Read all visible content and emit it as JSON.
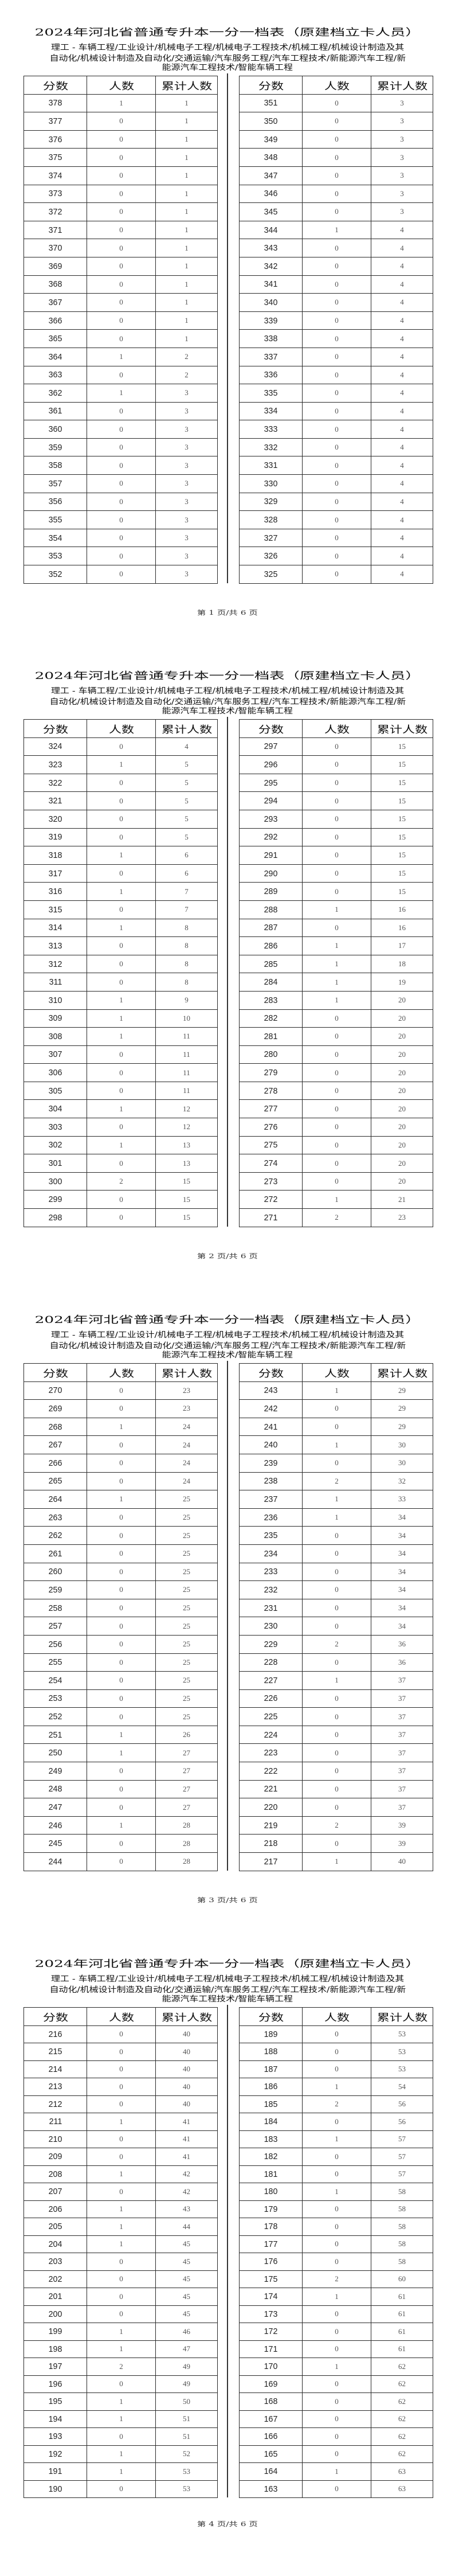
{
  "document": {
    "title": "2024年河北省普通专升本一分一档表（原建档立卡人员）",
    "subtitle_lines": [
      "理工 - 车辆工程/工业设计/机械电子工程/机械电子工程技术/机械工程/机械设计制造及其",
      "自动化/机械设计制造及自动化/交通运输/汽车服务工程/汽车工程技术/新能源汽车工程/新",
      "能源汽车工程技术/智能车辆工程"
    ],
    "columns": [
      "分数",
      "人数",
      "累计人数"
    ]
  },
  "pages": [
    {
      "footer": "第 1 页/共 6 页",
      "left": [
        [
          378,
          1,
          1
        ],
        [
          377,
          0,
          1
        ],
        [
          376,
          0,
          1
        ],
        [
          375,
          0,
          1
        ],
        [
          374,
          0,
          1
        ],
        [
          373,
          0,
          1
        ],
        [
          372,
          0,
          1
        ],
        [
          371,
          0,
          1
        ],
        [
          370,
          0,
          1
        ],
        [
          369,
          0,
          1
        ],
        [
          368,
          0,
          1
        ],
        [
          367,
          0,
          1
        ],
        [
          366,
          0,
          1
        ],
        [
          365,
          0,
          1
        ],
        [
          364,
          1,
          2
        ],
        [
          363,
          0,
          2
        ],
        [
          362,
          1,
          3
        ],
        [
          361,
          0,
          3
        ],
        [
          360,
          0,
          3
        ],
        [
          359,
          0,
          3
        ],
        [
          358,
          0,
          3
        ],
        [
          357,
          0,
          3
        ],
        [
          356,
          0,
          3
        ],
        [
          355,
          0,
          3
        ],
        [
          354,
          0,
          3
        ],
        [
          353,
          0,
          3
        ],
        [
          352,
          0,
          3
        ]
      ],
      "right": [
        [
          351,
          0,
          3
        ],
        [
          350,
          0,
          3
        ],
        [
          349,
          0,
          3
        ],
        [
          348,
          0,
          3
        ],
        [
          347,
          0,
          3
        ],
        [
          346,
          0,
          3
        ],
        [
          345,
          0,
          3
        ],
        [
          344,
          1,
          4
        ],
        [
          343,
          0,
          4
        ],
        [
          342,
          0,
          4
        ],
        [
          341,
          0,
          4
        ],
        [
          340,
          0,
          4
        ],
        [
          339,
          0,
          4
        ],
        [
          338,
          0,
          4
        ],
        [
          337,
          0,
          4
        ],
        [
          336,
          0,
          4
        ],
        [
          335,
          0,
          4
        ],
        [
          334,
          0,
          4
        ],
        [
          333,
          0,
          4
        ],
        [
          332,
          0,
          4
        ],
        [
          331,
          0,
          4
        ],
        [
          330,
          0,
          4
        ],
        [
          329,
          0,
          4
        ],
        [
          328,
          0,
          4
        ],
        [
          327,
          0,
          4
        ],
        [
          326,
          0,
          4
        ],
        [
          325,
          0,
          4
        ]
      ]
    },
    {
      "footer": "第 2 页/共 6 页",
      "left": [
        [
          324,
          0,
          4
        ],
        [
          323,
          1,
          5
        ],
        [
          322,
          0,
          5
        ],
        [
          321,
          0,
          5
        ],
        [
          320,
          0,
          5
        ],
        [
          319,
          0,
          5
        ],
        [
          318,
          1,
          6
        ],
        [
          317,
          0,
          6
        ],
        [
          316,
          1,
          7
        ],
        [
          315,
          0,
          7
        ],
        [
          314,
          1,
          8
        ],
        [
          313,
          0,
          8
        ],
        [
          312,
          0,
          8
        ],
        [
          311,
          0,
          8
        ],
        [
          310,
          1,
          9
        ],
        [
          309,
          1,
          10
        ],
        [
          308,
          1,
          11
        ],
        [
          307,
          0,
          11
        ],
        [
          306,
          0,
          11
        ],
        [
          305,
          0,
          11
        ],
        [
          304,
          1,
          12
        ],
        [
          303,
          0,
          12
        ],
        [
          302,
          1,
          13
        ],
        [
          301,
          0,
          13
        ],
        [
          300,
          2,
          15
        ],
        [
          299,
          0,
          15
        ],
        [
          298,
          0,
          15
        ]
      ],
      "right": [
        [
          297,
          0,
          15
        ],
        [
          296,
          0,
          15
        ],
        [
          295,
          0,
          15
        ],
        [
          294,
          0,
          15
        ],
        [
          293,
          0,
          15
        ],
        [
          292,
          0,
          15
        ],
        [
          291,
          0,
          15
        ],
        [
          290,
          0,
          15
        ],
        [
          289,
          0,
          15
        ],
        [
          288,
          1,
          16
        ],
        [
          287,
          0,
          16
        ],
        [
          286,
          1,
          17
        ],
        [
          285,
          1,
          18
        ],
        [
          284,
          1,
          19
        ],
        [
          283,
          1,
          20
        ],
        [
          282,
          0,
          20
        ],
        [
          281,
          0,
          20
        ],
        [
          280,
          0,
          20
        ],
        [
          279,
          0,
          20
        ],
        [
          278,
          0,
          20
        ],
        [
          277,
          0,
          20
        ],
        [
          276,
          0,
          20
        ],
        [
          275,
          0,
          20
        ],
        [
          274,
          0,
          20
        ],
        [
          273,
          0,
          20
        ],
        [
          272,
          1,
          21
        ],
        [
          271,
          2,
          23
        ]
      ]
    },
    {
      "footer": "第 3 页/共 6 页",
      "left": [
        [
          270,
          0,
          23
        ],
        [
          269,
          0,
          23
        ],
        [
          268,
          1,
          24
        ],
        [
          267,
          0,
          24
        ],
        [
          266,
          0,
          24
        ],
        [
          265,
          0,
          24
        ],
        [
          264,
          1,
          25
        ],
        [
          263,
          0,
          25
        ],
        [
          262,
          0,
          25
        ],
        [
          261,
          0,
          25
        ],
        [
          260,
          0,
          25
        ],
        [
          259,
          0,
          25
        ],
        [
          258,
          0,
          25
        ],
        [
          257,
          0,
          25
        ],
        [
          256,
          0,
          25
        ],
        [
          255,
          0,
          25
        ],
        [
          254,
          0,
          25
        ],
        [
          253,
          0,
          25
        ],
        [
          252,
          0,
          25
        ],
        [
          251,
          1,
          26
        ],
        [
          250,
          1,
          27
        ],
        [
          249,
          0,
          27
        ],
        [
          248,
          0,
          27
        ],
        [
          247,
          0,
          27
        ],
        [
          246,
          1,
          28
        ],
        [
          245,
          0,
          28
        ],
        [
          244,
          0,
          28
        ]
      ],
      "right": [
        [
          243,
          1,
          29
        ],
        [
          242,
          0,
          29
        ],
        [
          241,
          0,
          29
        ],
        [
          240,
          1,
          30
        ],
        [
          239,
          0,
          30
        ],
        [
          238,
          2,
          32
        ],
        [
          237,
          1,
          33
        ],
        [
          236,
          1,
          34
        ],
        [
          235,
          0,
          34
        ],
        [
          234,
          0,
          34
        ],
        [
          233,
          0,
          34
        ],
        [
          232,
          0,
          34
        ],
        [
          231,
          0,
          34
        ],
        [
          230,
          0,
          34
        ],
        [
          229,
          2,
          36
        ],
        [
          228,
          0,
          36
        ],
        [
          227,
          1,
          37
        ],
        [
          226,
          0,
          37
        ],
        [
          225,
          0,
          37
        ],
        [
          224,
          0,
          37
        ],
        [
          223,
          0,
          37
        ],
        [
          222,
          0,
          37
        ],
        [
          221,
          0,
          37
        ],
        [
          220,
          0,
          37
        ],
        [
          219,
          2,
          39
        ],
        [
          218,
          0,
          39
        ],
        [
          217,
          1,
          40
        ]
      ]
    },
    {
      "footer": "第 4 页/共 6 页",
      "left": [
        [
          216,
          0,
          40
        ],
        [
          215,
          0,
          40
        ],
        [
          214,
          0,
          40
        ],
        [
          213,
          0,
          40
        ],
        [
          212,
          0,
          40
        ],
        [
          211,
          1,
          41
        ],
        [
          210,
          0,
          41
        ],
        [
          209,
          0,
          41
        ],
        [
          208,
          1,
          42
        ],
        [
          207,
          0,
          42
        ],
        [
          206,
          1,
          43
        ],
        [
          205,
          1,
          44
        ],
        [
          204,
          1,
          45
        ],
        [
          203,
          0,
          45
        ],
        [
          202,
          0,
          45
        ],
        [
          201,
          0,
          45
        ],
        [
          200,
          0,
          45
        ],
        [
          199,
          1,
          46
        ],
        [
          198,
          1,
          47
        ],
        [
          197,
          2,
          49
        ],
        [
          196,
          0,
          49
        ],
        [
          195,
          1,
          50
        ],
        [
          194,
          1,
          51
        ],
        [
          193,
          0,
          51
        ],
        [
          192,
          1,
          52
        ],
        [
          191,
          1,
          53
        ],
        [
          190,
          0,
          53
        ]
      ],
      "right": [
        [
          189,
          0,
          53
        ],
        [
          188,
          0,
          53
        ],
        [
          187,
          0,
          53
        ],
        [
          186,
          1,
          54
        ],
        [
          185,
          2,
          56
        ],
        [
          184,
          0,
          56
        ],
        [
          183,
          1,
          57
        ],
        [
          182,
          0,
          57
        ],
        [
          181,
          0,
          57
        ],
        [
          180,
          1,
          58
        ],
        [
          179,
          0,
          58
        ],
        [
          178,
          0,
          58
        ],
        [
          177,
          0,
          58
        ],
        [
          176,
          0,
          58
        ],
        [
          175,
          2,
          60
        ],
        [
          174,
          1,
          61
        ],
        [
          173,
          0,
          61
        ],
        [
          172,
          0,
          61
        ],
        [
          171,
          0,
          61
        ],
        [
          170,
          1,
          62
        ],
        [
          169,
          0,
          62
        ],
        [
          168,
          0,
          62
        ],
        [
          167,
          0,
          62
        ],
        [
          166,
          0,
          62
        ],
        [
          165,
          0,
          62
        ],
        [
          164,
          1,
          63
        ],
        [
          163,
          0,
          63
        ]
      ]
    }
  ]
}
